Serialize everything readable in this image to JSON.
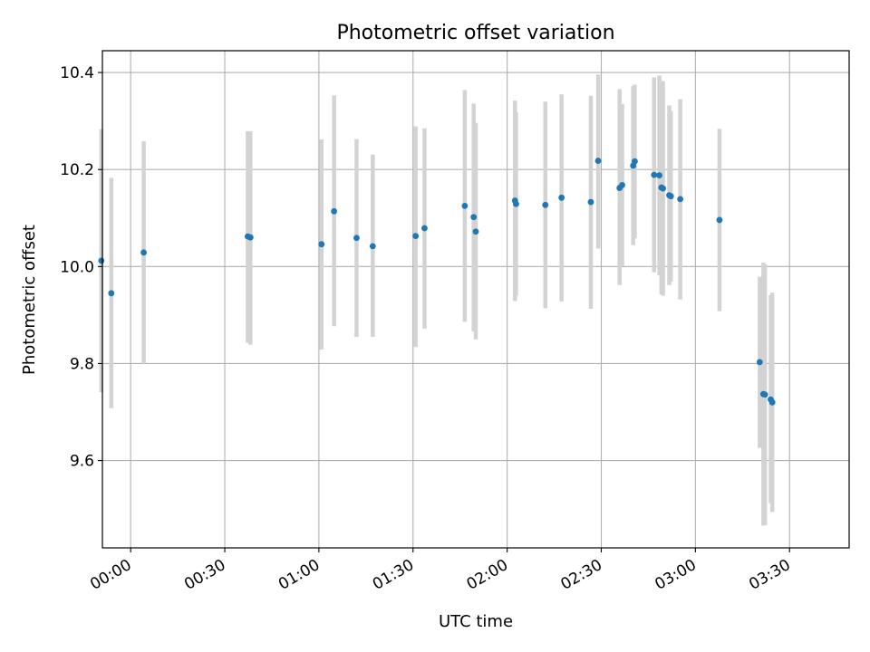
{
  "chart_data": {
    "type": "scatter",
    "title": "Photometric offset variation",
    "xlabel": "UTC time",
    "ylabel": "Photometric offset",
    "x_unit": "time (HH:MM UTC)",
    "xlim": [
      "23:51",
      "03:49"
    ],
    "ylim": [
      9.42,
      10.445
    ],
    "grid": true,
    "yticks": [
      9.6,
      9.8,
      10.0,
      10.2,
      10.4
    ],
    "ytick_labels": [
      "9.6",
      "9.8",
      "10.0",
      "10.2",
      "10.4"
    ],
    "xticks": [
      "00:00",
      "00:30",
      "01:00",
      "01:30",
      "02:00",
      "02:30",
      "03:00",
      "03:30"
    ],
    "xtick_labels": [
      "00:00",
      "00:30",
      "01:00",
      "01:30",
      "02:00",
      "02:30",
      "03:00",
      "03:30"
    ],
    "colors": {
      "points": "#1f77b4",
      "errorbars": "#d3d3d3",
      "grid": "#b0b0b0"
    },
    "points": [
      {
        "x": "23:50:40",
        "y": 10.012,
        "ylo": 9.741,
        "yhi": 10.283
      },
      {
        "x": "23:53:50",
        "y": 9.945,
        "ylo": 9.708,
        "yhi": 10.183
      },
      {
        "x": "00:04:10",
        "y": 10.029,
        "ylo": 9.8,
        "yhi": 10.258
      },
      {
        "x": "00:37:20",
        "y": 10.062,
        "ylo": 9.843,
        "yhi": 10.279
      },
      {
        "x": "00:38:10",
        "y": 10.06,
        "ylo": 9.839,
        "yhi": 10.279
      },
      {
        "x": "01:00:50",
        "y": 10.046,
        "ylo": 9.829,
        "yhi": 10.262
      },
      {
        "x": "01:04:50",
        "y": 10.114,
        "ylo": 9.877,
        "yhi": 10.353
      },
      {
        "x": "01:12:00",
        "y": 10.059,
        "ylo": 9.855,
        "yhi": 10.263
      },
      {
        "x": "01:17:10",
        "y": 10.042,
        "ylo": 9.855,
        "yhi": 10.231
      },
      {
        "x": "01:30:50",
        "y": 10.063,
        "ylo": 9.834,
        "yhi": 10.289
      },
      {
        "x": "01:33:40",
        "y": 10.079,
        "ylo": 9.872,
        "yhi": 10.285
      },
      {
        "x": "01:46:30",
        "y": 10.125,
        "ylo": 9.886,
        "yhi": 10.364
      },
      {
        "x": "01:49:20",
        "y": 10.102,
        "ylo": 9.866,
        "yhi": 10.336
      },
      {
        "x": "01:50:00",
        "y": 10.072,
        "ylo": 9.85,
        "yhi": 10.296
      },
      {
        "x": "02:02:30",
        "y": 10.136,
        "ylo": 9.929,
        "yhi": 10.342
      },
      {
        "x": "02:02:50",
        "y": 10.129,
        "ylo": 9.94,
        "yhi": 10.318
      },
      {
        "x": "02:12:10",
        "y": 10.127,
        "ylo": 9.914,
        "yhi": 10.34
      },
      {
        "x": "02:17:20",
        "y": 10.142,
        "ylo": 9.928,
        "yhi": 10.355
      },
      {
        "x": "02:26:40",
        "y": 10.133,
        "ylo": 9.913,
        "yhi": 10.352
      },
      {
        "x": "02:29:00",
        "y": 10.218,
        "ylo": 10.037,
        "yhi": 10.396
      },
      {
        "x": "02:35:50",
        "y": 10.162,
        "ylo": 9.962,
        "yhi": 10.366
      },
      {
        "x": "02:36:40",
        "y": 10.168,
        "ylo": 10.001,
        "yhi": 10.335
      },
      {
        "x": "02:40:10",
        "y": 10.208,
        "ylo": 10.044,
        "yhi": 10.372
      },
      {
        "x": "02:40:40",
        "y": 10.217,
        "ylo": 10.058,
        "yhi": 10.375
      },
      {
        "x": "02:46:50",
        "y": 10.189,
        "ylo": 9.988,
        "yhi": 10.39
      },
      {
        "x": "02:48:30",
        "y": 10.188,
        "ylo": 9.982,
        "yhi": 10.394
      },
      {
        "x": "02:49:10",
        "y": 10.163,
        "ylo": 9.943,
        "yhi": 10.383
      },
      {
        "x": "02:49:40",
        "y": 10.161,
        "ylo": 9.94,
        "yhi": 10.382
      },
      {
        "x": "02:51:40",
        "y": 10.147,
        "ylo": 9.962,
        "yhi": 10.332
      },
      {
        "x": "02:52:10",
        "y": 10.145,
        "ylo": 9.969,
        "yhi": 10.321
      },
      {
        "x": "02:55:10",
        "y": 10.139,
        "ylo": 9.932,
        "yhi": 10.345
      },
      {
        "x": "03:07:40",
        "y": 10.096,
        "ylo": 9.908,
        "yhi": 10.284
      },
      {
        "x": "03:20:30",
        "y": 9.803,
        "ylo": 9.626,
        "yhi": 9.979
      },
      {
        "x": "03:21:40",
        "y": 9.737,
        "ylo": 9.466,
        "yhi": 10.008
      },
      {
        "x": "03:22:10",
        "y": 9.736,
        "ylo": 9.467,
        "yhi": 10.005
      },
      {
        "x": "03:24:00",
        "y": 9.726,
        "ylo": 9.512,
        "yhi": 9.941
      },
      {
        "x": "03:24:30",
        "y": 9.72,
        "ylo": 9.494,
        "yhi": 9.946
      }
    ]
  }
}
